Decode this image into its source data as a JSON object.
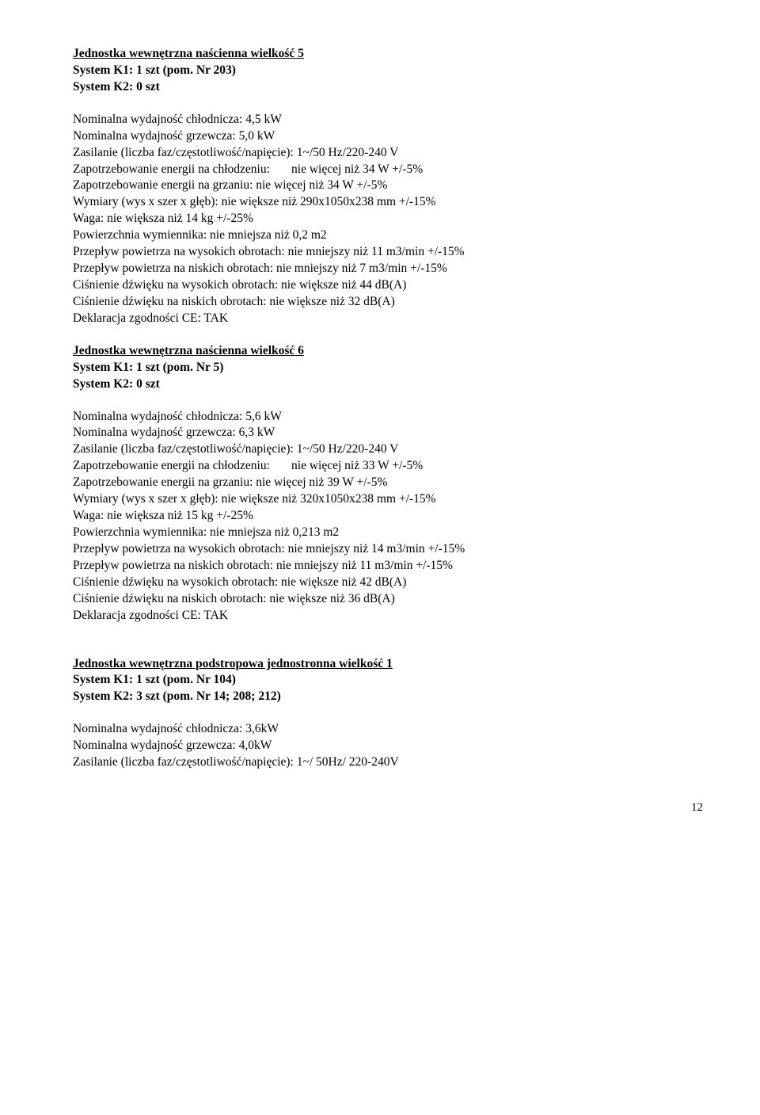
{
  "u5": {
    "heading": "Jednostka wewnętrzna naścienna wielkość 5",
    "k1": "System K1: 1 szt (pom. Nr 203)",
    "k2": "System K2: 0 szt",
    "specs": [
      "Nominalna wydajność chłodnicza: 4,5 kW",
      "Nominalna wydajność grzewcza: 5,0 kW",
      "Zasilanie (liczba faz/częstotliwość/napięcie): 1~/50 Hz/220-240 V",
      "Zapotrzebowanie energii na chłodzeniu:       nie więcej niż 34 W +/-5%",
      "Zapotrzebowanie energii na grzaniu: nie więcej niż 34 W +/-5%",
      "Wymiary (wys x szer x głęb): nie większe niż 290x1050x238 mm +/-15%",
      "Waga: nie większa niż 14 kg +/-25%",
      "Powierzchnia wymiennika: nie mniejsza niż 0,2 m2",
      "Przepływ powietrza na wysokich obrotach: nie mniejszy niż 11 m3/min +/-15%",
      "Przepływ powietrza na niskich obrotach: nie mniejszy niż 7 m3/min +/-15%",
      "Ciśnienie dźwięku na wysokich obrotach: nie większe niż 44 dB(A)",
      "Ciśnienie dźwięku na niskich obrotach: nie większe niż 32 dB(A)",
      "Deklaracja zgodności CE: TAK"
    ]
  },
  "u6": {
    "heading": "Jednostka wewnętrzna naścienna wielkość 6",
    "k1": "System K1: 1 szt (pom. Nr 5)",
    "k2": "System K2: 0 szt",
    "specs": [
      "Nominalna wydajność chłodnicza: 5,6 kW",
      "Nominalna wydajność grzewcza:  6,3 kW",
      "Zasilanie (liczba faz/częstotliwość/napięcie): 1~/50 Hz/220-240 V",
      "Zapotrzebowanie energii na chłodzeniu:       nie więcej niż 33 W +/-5%",
      "Zapotrzebowanie energii na grzaniu: nie więcej niż 39 W +/-5%",
      "Wymiary (wys x szer x głęb): nie większe niż 320x1050x238 mm +/-15%",
      "Waga: nie większa niż 15 kg +/-25%",
      "Powierzchnia wymiennika: nie mniejsza niż 0,213 m2",
      "Przepływ powietrza na wysokich obrotach: nie mniejszy niż 14 m3/min +/-15%",
      "Przepływ powietrza na niskich obrotach: nie mniejszy niż 11 m3/min +/-15%",
      "Ciśnienie dźwięku na wysokich obrotach: nie większe niż 42 dB(A)",
      "Ciśnienie dźwięku na niskich obrotach: nie większe niż 36 dB(A)",
      "Deklaracja zgodności CE: TAK"
    ]
  },
  "u7": {
    "heading": "Jednostka wewnętrzna podstropowa jednostronna wielkość 1",
    "k1": "System K1: 1 szt (pom. Nr 104)",
    "k2": "System K2: 3 szt (pom. Nr 14; 208; 212)",
    "specs": [
      "Nominalna wydajność chłodnicza: 3,6kW",
      "Nominalna wydajność grzewcza: 4,0kW",
      "Zasilanie (liczba faz/częstotliwość/napięcie): 1~/ 50Hz/ 220-240V"
    ]
  },
  "pageNumber": "12"
}
